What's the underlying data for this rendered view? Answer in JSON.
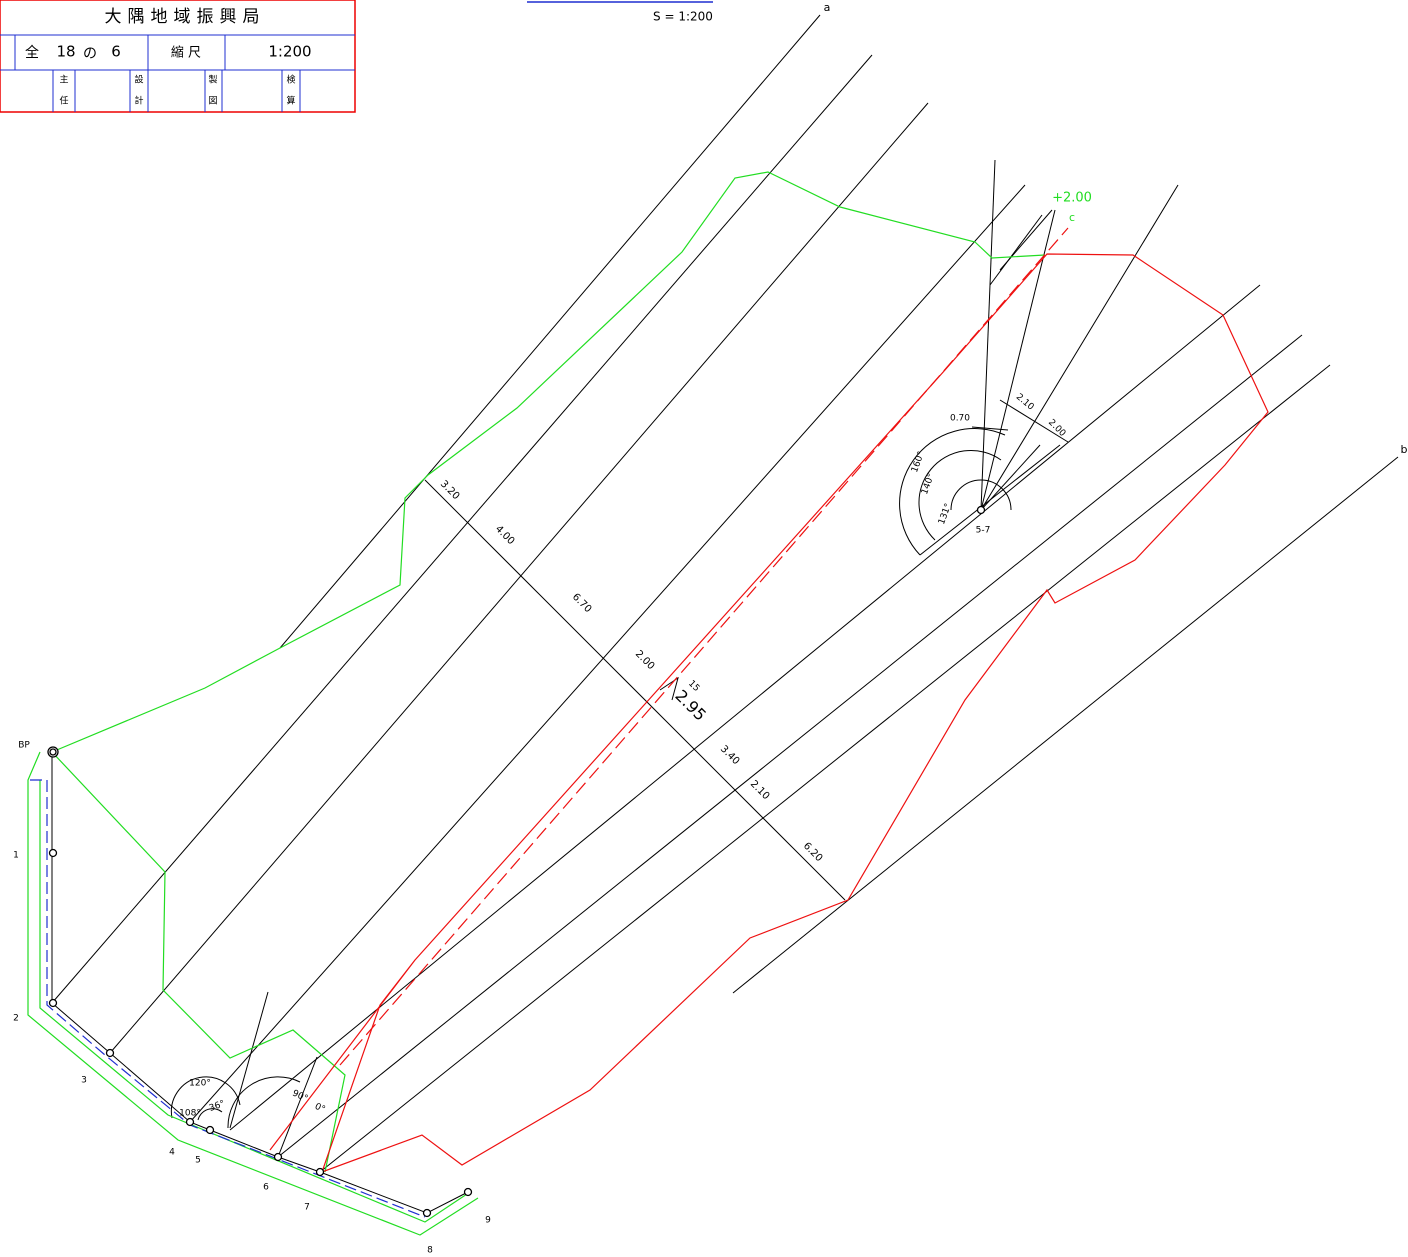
{
  "title_block": {
    "title": "大隅地域振興局",
    "sheet_prefix": "全",
    "sheet_total": "18",
    "sheet_of": "の",
    "sheet_number": "6",
    "scale_label": "縮 尺",
    "scale_value": "1:200",
    "signoffs": [
      [
        "主",
        "任"
      ],
      [
        "設",
        "計"
      ],
      [
        "製",
        "図"
      ],
      [
        "検",
        "算"
      ]
    ]
  },
  "scale_note": "S = 1:200",
  "line_labels": [
    "a",
    "b",
    "c"
  ],
  "offset_label": "+2.00",
  "point_labels": [
    "BP",
    "1",
    "2",
    "3",
    "4",
    "5",
    "6",
    "7",
    "8",
    "9"
  ],
  "center_label": "5-7",
  "dimensions": [
    "3.20",
    "4.00",
    "6.70",
    "2.00",
    "15",
    "2.95",
    "3.40",
    "2.10",
    "6.20"
  ],
  "top_dimensions": [
    "0.70",
    "2.10",
    "2.00"
  ],
  "angles": [
    "160°",
    "140°",
    "131°",
    "120°",
    "36°",
    "108°",
    "90°",
    "0°"
  ]
}
